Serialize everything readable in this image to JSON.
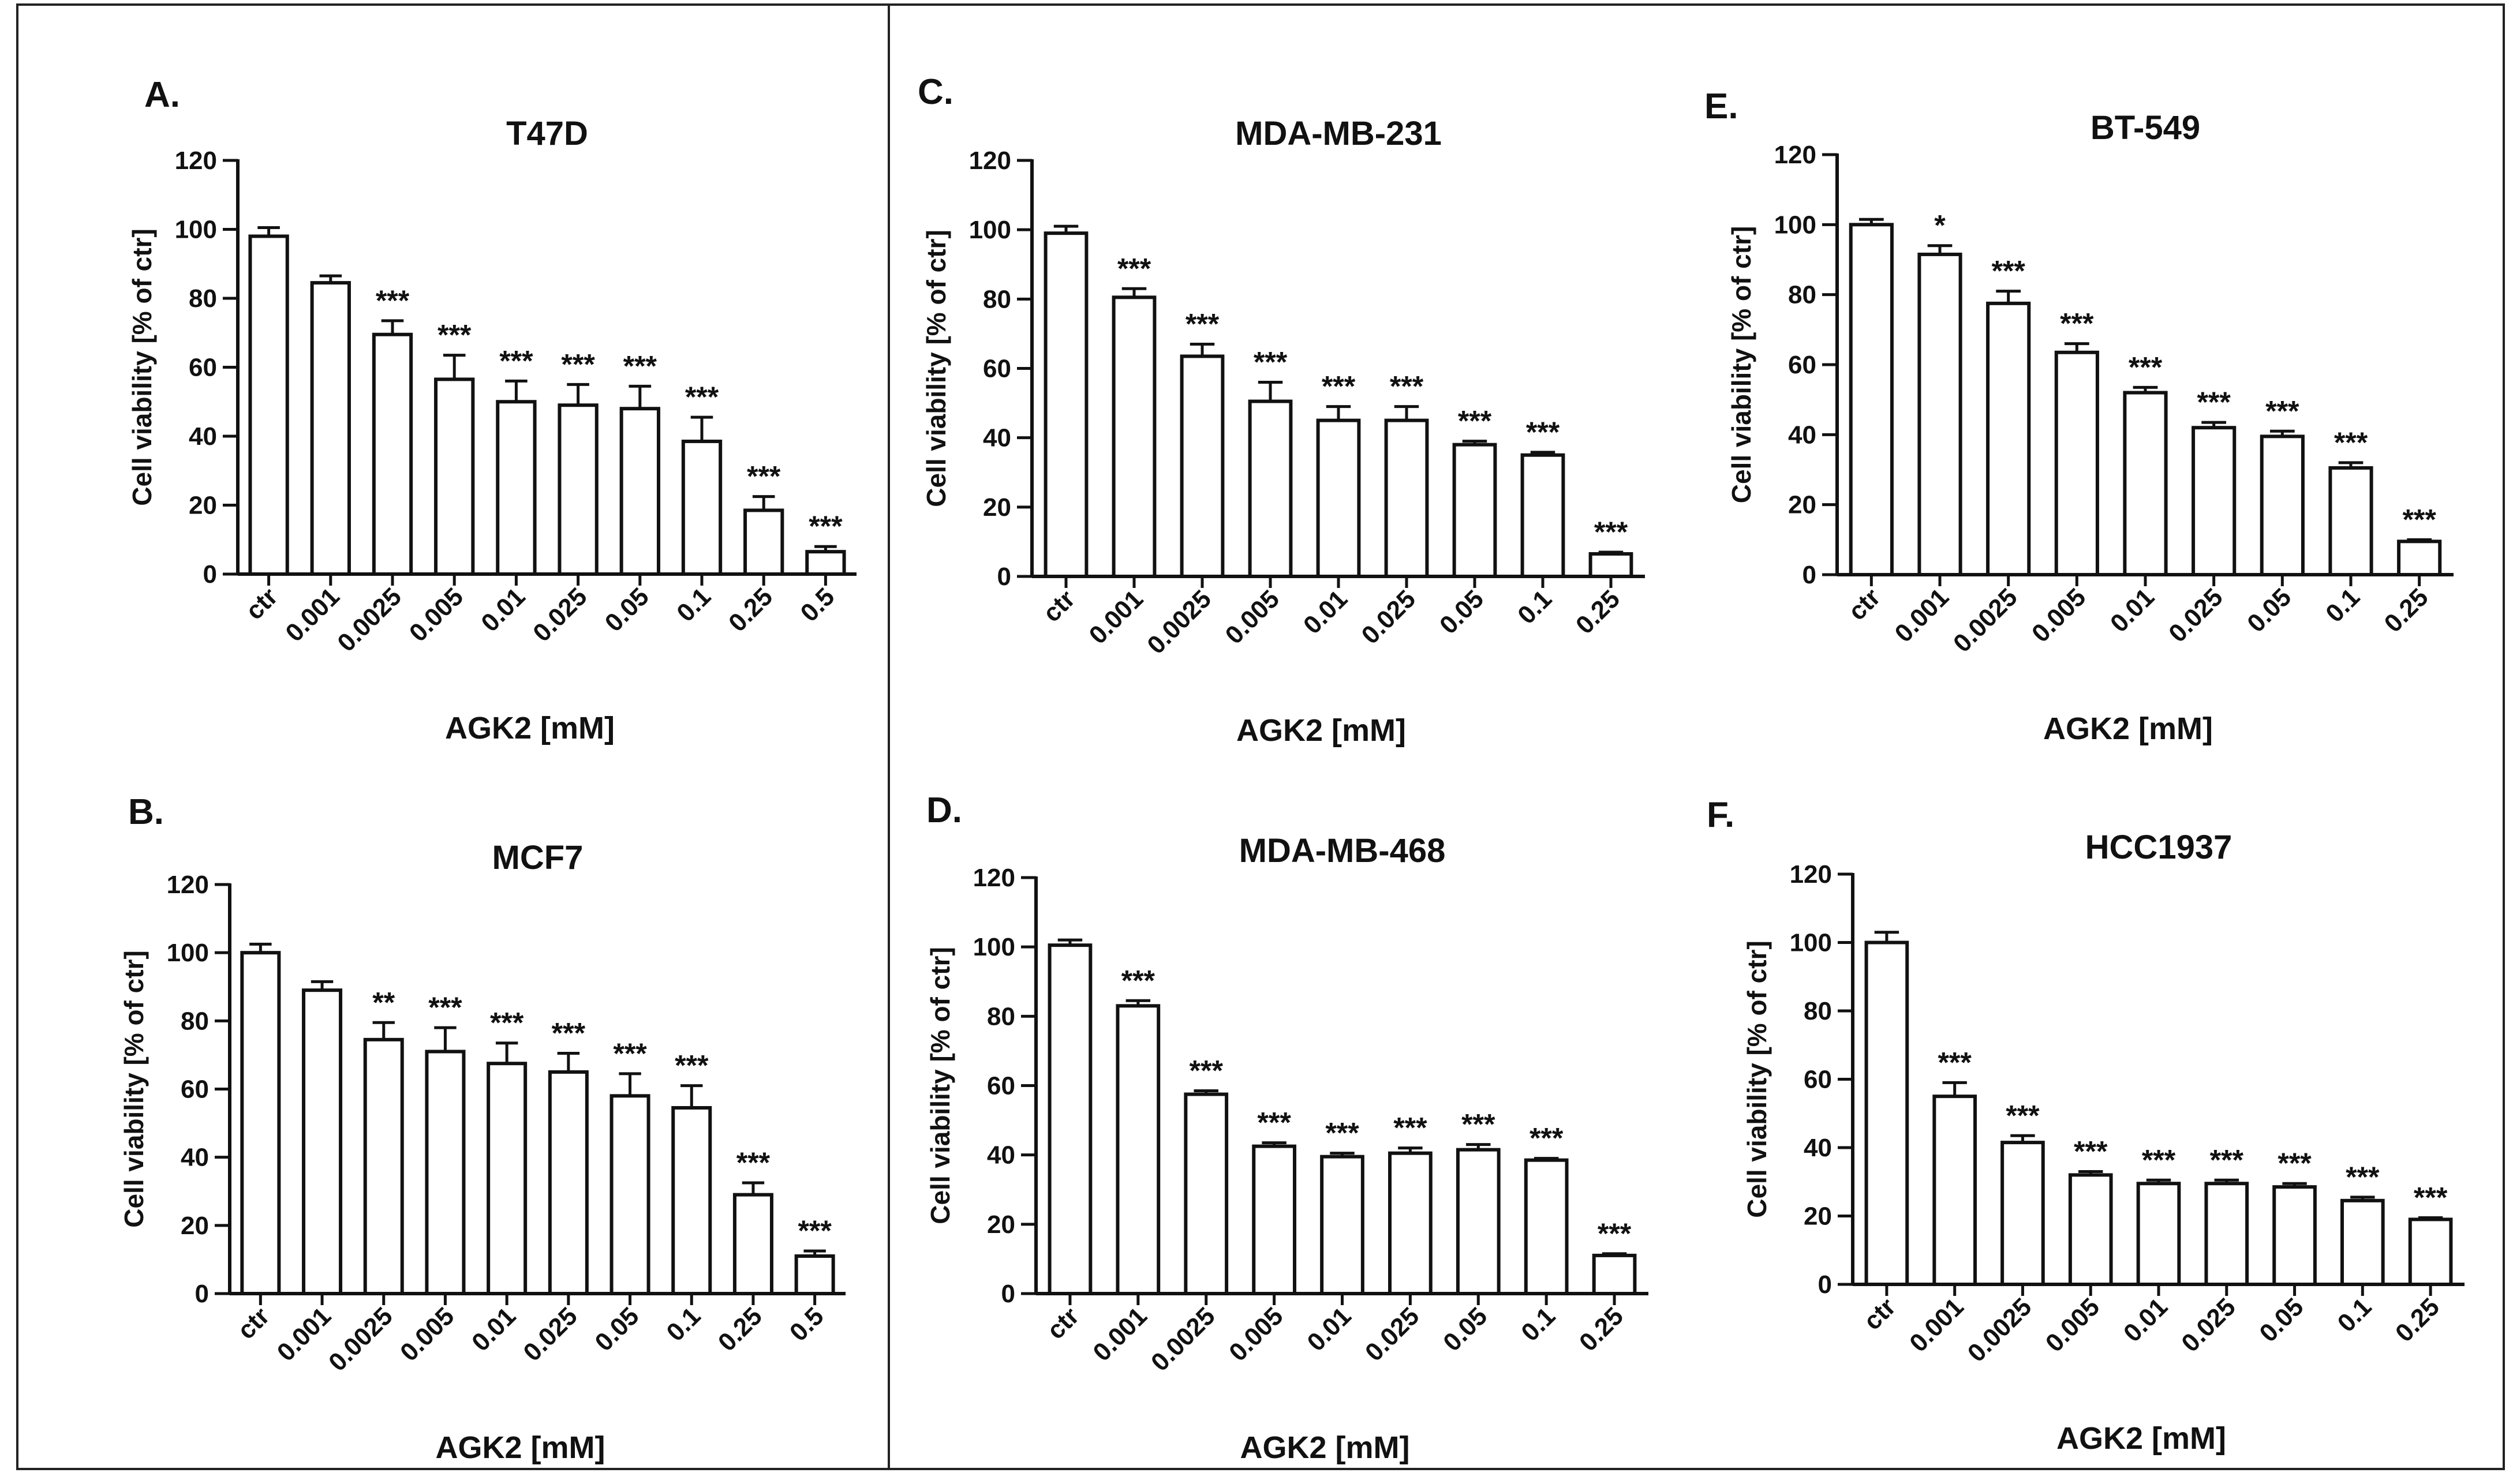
{
  "figure": {
    "divider": true
  },
  "chart_data": [
    {
      "id": "A",
      "type": "bar",
      "panel_label": "A.",
      "title": "T47D",
      "ylabel": "Cell viability [% of ctr]",
      "xlabel": "AGK2 [mM]",
      "ylim": [
        0,
        120
      ],
      "yticks": [
        "0",
        "20",
        "40",
        "60",
        "80",
        "100",
        "120"
      ],
      "categories": [
        "ctr",
        "0.001",
        "0.0025",
        "0.005",
        "0.01",
        "0.025",
        "0.05",
        "0.1",
        "0.25",
        "0.5"
      ],
      "values": [
        98,
        84.5,
        69.5,
        56.5,
        50,
        49,
        48,
        38.5,
        18.5,
        6.5
      ],
      "errors": [
        2.5,
        2,
        4,
        7,
        6,
        6,
        6.5,
        7,
        4,
        1.5
      ],
      "significance": [
        "",
        "",
        "***",
        "***",
        "***",
        "***",
        "***",
        "***",
        "***",
        "***"
      ]
    },
    {
      "id": "B",
      "type": "bar",
      "panel_label": "B.",
      "title": "MCF7",
      "ylabel": "Cell viability [% of ctr]",
      "xlabel": "AGK2 [mM]",
      "ylim": [
        0,
        120
      ],
      "yticks": [
        "0",
        "20",
        "40",
        "60",
        "80",
        "100",
        "120"
      ],
      "categories": [
        "ctr",
        "0.001",
        "0.0025",
        "0.005",
        "0.01",
        "0.025",
        "0.05",
        "0.1",
        "0.25",
        "0.5"
      ],
      "values": [
        100,
        89,
        74.5,
        71,
        67.5,
        65,
        58,
        54.5,
        29,
        11
      ],
      "errors": [
        2.5,
        2.5,
        5,
        7,
        6,
        5.5,
        6.5,
        6.5,
        3.5,
        1.5
      ],
      "significance": [
        "",
        "",
        "**",
        "***",
        "***",
        "***",
        "***",
        "***",
        "***",
        "***"
      ]
    },
    {
      "id": "C",
      "type": "bar",
      "panel_label": "C.",
      "title": "MDA-MB-231",
      "ylabel": "Cell viability [% of ctr]",
      "xlabel": "AGK2 [mM]",
      "ylim": [
        0,
        120
      ],
      "yticks": [
        "0",
        "20",
        "40",
        "60",
        "80",
        "100",
        "120"
      ],
      "categories": [
        "ctr",
        "0.001",
        "0.0025",
        "0.005",
        "0.01",
        "0.025",
        "0.05",
        "0.1",
        "0.25"
      ],
      "values": [
        99,
        80.5,
        63.5,
        50.5,
        45,
        45,
        38,
        35,
        6.5
      ],
      "errors": [
        2,
        2.5,
        3.5,
        5.5,
        4,
        4,
        1,
        0.8,
        0.5
      ],
      "significance": [
        "",
        "***",
        "***",
        "***",
        "***",
        "***",
        "***",
        "***",
        "***"
      ]
    },
    {
      "id": "D",
      "type": "bar",
      "panel_label": "D.",
      "title": "MDA-MB-468",
      "ylabel": "Cell viability [% of ctr]",
      "xlabel": "AGK2 [mM]",
      "ylim": [
        0,
        120
      ],
      "yticks": [
        "0",
        "20",
        "40",
        "60",
        "80",
        "100",
        "120"
      ],
      "categories": [
        "ctr",
        "0.001",
        "0.0025",
        "0.005",
        "0.01",
        "0.025",
        "0.05",
        "0.1",
        "0.25"
      ],
      "values": [
        100.5,
        83,
        57.5,
        42.5,
        39.5,
        40.5,
        41.5,
        38.5,
        11
      ],
      "errors": [
        1.5,
        1.5,
        1,
        1,
        1,
        1.5,
        1.5,
        0.5,
        0.5
      ],
      "significance": [
        "",
        "***",
        "***",
        "***",
        "***",
        "***",
        "***",
        "***",
        "***"
      ]
    },
    {
      "id": "E",
      "type": "bar",
      "panel_label": "E.",
      "title": "BT-549",
      "ylabel": "Cell viability [% of ctr]",
      "xlabel": "AGK2 [mM]",
      "ylim": [
        0,
        120
      ],
      "yticks": [
        "0",
        "20",
        "40",
        "60",
        "80",
        "100",
        "120"
      ],
      "categories": [
        "ctr",
        "0.001",
        "0.0025",
        "0.005",
        "0.01",
        "0.025",
        "0.05",
        "0.1",
        "0.25"
      ],
      "values": [
        100,
        91.5,
        77.5,
        63.5,
        52,
        42,
        39.5,
        30.5,
        9.5
      ],
      "errors": [
        1.5,
        2.5,
        3.5,
        2.5,
        1.5,
        1.5,
        1.5,
        1.5,
        0.5
      ],
      "significance": [
        "",
        "*",
        "***",
        "***",
        "***",
        "***",
        "***",
        "***",
        "***"
      ]
    },
    {
      "id": "F",
      "type": "bar",
      "panel_label": "F.",
      "title": "HCC1937",
      "ylabel": "Cell viability [% of ctr]",
      "xlabel": "AGK2 [mM]",
      "ylim": [
        0,
        120
      ],
      "yticks": [
        "0",
        "20",
        "40",
        "60",
        "80",
        "100",
        "120"
      ],
      "categories": [
        "ctr",
        "0.001",
        "0.0025",
        "0.005",
        "0.01",
        "0.025",
        "0.05",
        "0.1",
        "0.25"
      ],
      "values": [
        100,
        55,
        41.5,
        32,
        29.5,
        29.5,
        28.5,
        24.5,
        19
      ],
      "errors": [
        3,
        4,
        2,
        1,
        1,
        1,
        1,
        1,
        0.5
      ],
      "significance": [
        "",
        "***",
        "***",
        "***",
        "***",
        "***",
        "***",
        "***",
        "***"
      ]
    }
  ]
}
